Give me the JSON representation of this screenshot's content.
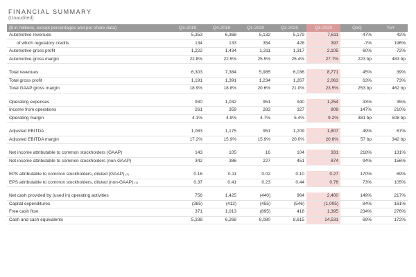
{
  "title": "FINANCIAL SUMMARY",
  "subtitle": "(Unaudited)",
  "header": {
    "label": "($ in millions, except percentages and per share data)",
    "columns": [
      "Q3-2019",
      "Q4-2019",
      "Q1-2020",
      "Q2-2020",
      "Q3-2020",
      "QoQ",
      "YoY"
    ]
  },
  "groups": [
    {
      "rows": [
        {
          "label": "Automotive revenues",
          "indent": false,
          "values": [
            "5,353",
            "6,368",
            "5,132",
            "5,179",
            "7,611",
            "47%",
            "42%"
          ]
        },
        {
          "label": "of which regulatory credits",
          "indent": true,
          "values": [
            "134",
            "133",
            "354",
            "428",
            "397",
            "-7%",
            "196%"
          ]
        },
        {
          "label": "Automotive gross profit",
          "indent": false,
          "values": [
            "1,222",
            "1,434",
            "1,311",
            "1,317",
            "2,105",
            "60%",
            "72%"
          ]
        },
        {
          "label": "Automotive gross margin",
          "indent": false,
          "values": [
            "22.8%",
            "22.5%",
            "25.5%",
            "25.4%",
            "27.7%",
            "223 bp",
            "483 bp"
          ]
        }
      ]
    },
    {
      "rows": [
        {
          "label": "Total revenues",
          "indent": false,
          "values": [
            "6,303",
            "7,384",
            "5,985",
            "6,036",
            "8,771",
            "45%",
            "39%"
          ]
        },
        {
          "label": "Total gross profit",
          "indent": false,
          "values": [
            "1,191",
            "1,391",
            "1,234",
            "1,267",
            "2,063",
            "63%",
            "73%"
          ]
        },
        {
          "label": "Total GAAP gross margin",
          "indent": false,
          "values": [
            "18.9%",
            "18.8%",
            "20.6%",
            "21.0%",
            "23.5%",
            "253 bp",
            "462 bp"
          ]
        }
      ]
    },
    {
      "rows": [
        {
          "label": "Operating expenses",
          "indent": false,
          "values": [
            "930",
            "1,032",
            "951",
            "940",
            "1,254",
            "33%",
            "35%"
          ]
        },
        {
          "label": "Income from operations",
          "indent": false,
          "values": [
            "261",
            "359",
            "283",
            "327",
            "809",
            "147%",
            "210%"
          ]
        },
        {
          "label": "Operating margin",
          "indent": false,
          "values": [
            "4.1%",
            "4.9%",
            "4.7%",
            "5.4%",
            "9.2%",
            "381 bp",
            "508 bp"
          ]
        }
      ]
    },
    {
      "rows": [
        {
          "label": "Adjusted EBITDA",
          "indent": false,
          "values": [
            "1,083",
            "1,175",
            "951",
            "1,209",
            "1,807",
            "49%",
            "67%"
          ]
        },
        {
          "label": "Adjusted EBITDA margin",
          "indent": false,
          "values": [
            "17.2%",
            "15.9%",
            "15.9%",
            "20.0%",
            "20.6%",
            "57 bp",
            "342 bp"
          ]
        }
      ]
    },
    {
      "rows": [
        {
          "label": "Net income attributable to common stockholders (GAAP)",
          "indent": false,
          "values": [
            "143",
            "105",
            "16",
            "104",
            "331",
            "218%",
            "131%"
          ]
        },
        {
          "label": "Net income attributable to common stockholders (non-GAAP)",
          "indent": false,
          "values": [
            "342",
            "386",
            "227",
            "451",
            "874",
            "94%",
            "156%"
          ]
        }
      ]
    },
    {
      "rows": [
        {
          "label": "EPS attributable to common stockholders, diluted (GAAP)",
          "sup": "(1)",
          "indent": false,
          "values": [
            "0.16",
            "0.11",
            "0.02",
            "0.10",
            "0.27",
            "170%",
            "69%"
          ]
        },
        {
          "label": "EPS attributable to common stockholders, diluted (non-GAAP)",
          "sup": "(1)",
          "indent": false,
          "values": [
            "0.37",
            "0.41",
            "0.23",
            "0.44",
            "0.76",
            "73%",
            "105%"
          ]
        }
      ]
    },
    {
      "rows": [
        {
          "label": "Net cash provided by (used in) operating activities",
          "indent": false,
          "values": [
            "756",
            "1,425",
            "(440)",
            "964",
            "2,400",
            "149%",
            "217%"
          ]
        },
        {
          "label": "Capital expenditures",
          "indent": false,
          "values": [
            "(385)",
            "(412)",
            "(455)",
            "(546)",
            "(1,005)",
            "84%",
            "161%"
          ]
        },
        {
          "label": "Free cash flow",
          "indent": false,
          "values": [
            "371",
            "1,013",
            "(895)",
            "418",
            "1,395",
            "234%",
            "276%"
          ]
        },
        {
          "label": "Cash and cash equivalents",
          "indent": false,
          "values": [
            "5,338",
            "6,268",
            "8,080",
            "8,615",
            "14,531",
            "69%",
            "172%"
          ]
        }
      ]
    }
  ],
  "highlight_column_index": 4,
  "colors": {
    "header_bg": "#9a9a9a",
    "highlight_header": "#d89a9a",
    "highlight_cell": "#f7dcdc"
  }
}
